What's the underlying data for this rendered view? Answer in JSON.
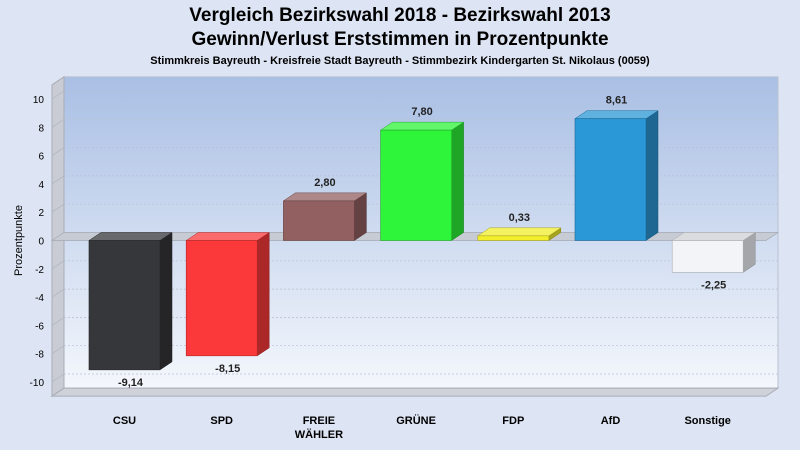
{
  "chart_data": {
    "type": "bar",
    "title": "Vergleich Bezirkswahl 2018 - Bezirkswahl 2013",
    "title_line_2": "Gewinn/Verlust Erststimmen in Prozentpunkte",
    "subtitle": "Stimmkreis Bayreuth - Kreisfreie Stadt Bayreuth - Stimmbezirk Kindergarten St. Nikolaus (0059)",
    "ylabel": "Prozentpunkte",
    "xlabel": "",
    "ylim": [
      -11,
      11
    ],
    "yticks": [
      10,
      8,
      6,
      4,
      2,
      0,
      -2,
      -4,
      -6,
      -8,
      -10
    ],
    "grid": true,
    "categories": [
      {
        "label_lines": [
          "CSU"
        ],
        "value": -9.14,
        "value_label": "-9,14",
        "color": "#36373b"
      },
      {
        "label_lines": [
          "SPD"
        ],
        "value": -8.15,
        "value_label": "-8,15",
        "color": "#fb393b"
      },
      {
        "label_lines": [
          "FREIE",
          "WÄHLER"
        ],
        "value": 2.8,
        "value_label": "2,80",
        "color": "#936061"
      },
      {
        "label_lines": [
          "GRÜNE"
        ],
        "value": 7.8,
        "value_label": "7,80",
        "color": "#2ef43a"
      },
      {
        "label_lines": [
          "FDP"
        ],
        "value": 0.33,
        "value_label": "0,33",
        "color": "#f2ee2c"
      },
      {
        "label_lines": [
          "AfD"
        ],
        "value": 8.61,
        "value_label": "8,61",
        "color": "#2a97d6"
      },
      {
        "label_lines": [
          "Sonstige"
        ],
        "value": -2.25,
        "value_label": "-2,25",
        "color": "#f2f4f8"
      }
    ]
  }
}
